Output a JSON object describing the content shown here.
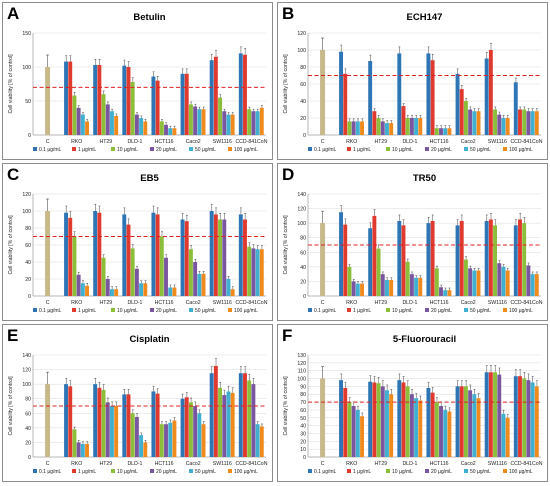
{
  "figure": {
    "ylabel": "Cell viability [% of control]",
    "categories": [
      "C",
      "RKO",
      "HT29",
      "DLD-1",
      "HCT116",
      "Caco2",
      "SW1116",
      "CCD-841CoN"
    ],
    "legend": [
      "0.1 µg/mL",
      "1 µg/mL",
      "10 µg/mL",
      "20 µg/mL",
      "50 µg/mL",
      "100 µg/mL"
    ],
    "colors": [
      "#2e75b6",
      "#e03a2f",
      "#8bbf3a",
      "#7a55a0",
      "#3fb0d0",
      "#f18a1d"
    ],
    "control_color": "#c8b98a",
    "threshold_color": "#e02020",
    "threshold": 70
  },
  "chart_data": [
    {
      "panel": "A",
      "title": "Betulin",
      "type": "bar",
      "ylim": [
        0,
        150
      ],
      "yticks": [
        0,
        50,
        100,
        150
      ],
      "control": 100,
      "series": [
        {
          "name": "0.1 µg/mL",
          "values": [
            108,
            103,
            102,
            86,
            90,
            110,
            120
          ]
        },
        {
          "name": "1 µg/mL",
          "values": [
            108,
            103,
            100,
            80,
            90,
            115,
            118
          ]
        },
        {
          "name": "10 µg/mL",
          "values": [
            58,
            60,
            78,
            20,
            45,
            55,
            38
          ]
        },
        {
          "name": "20 µg/mL",
          "values": [
            40,
            45,
            30,
            15,
            42,
            35,
            35
          ]
        },
        {
          "name": "50 µg/mL",
          "values": [
            30,
            35,
            25,
            10,
            38,
            30,
            35
          ]
        },
        {
          "name": "100 µg/mL",
          "values": [
            20,
            28,
            20,
            10,
            38,
            30,
            40
          ]
        }
      ]
    },
    {
      "panel": "B",
      "title": "ECH147",
      "type": "bar",
      "ylim": [
        0,
        120
      ],
      "yticks": [
        0,
        20,
        40,
        60,
        80,
        100,
        120
      ],
      "control": 100,
      "series": [
        {
          "name": "0.1 µg/mL",
          "values": [
            98,
            87,
            96,
            96,
            72,
            90,
            62
          ]
        },
        {
          "name": "1 µg/mL",
          "values": [
            72,
            28,
            34,
            88,
            54,
            100,
            30
          ]
        },
        {
          "name": "10 µg/mL",
          "values": [
            16,
            20,
            20,
            8,
            40,
            30,
            30
          ]
        },
        {
          "name": "20 µg/mL",
          "values": [
            16,
            16,
            20,
            8,
            30,
            24,
            28
          ]
        },
        {
          "name": "50 µg/mL",
          "values": [
            16,
            14,
            20,
            8,
            28,
            20,
            28
          ]
        },
        {
          "name": "100 µg/mL",
          "values": [
            16,
            14,
            20,
            8,
            28,
            20,
            28
          ]
        }
      ]
    },
    {
      "panel": "C",
      "title": "EB5",
      "type": "bar",
      "ylim": [
        0,
        120
      ],
      "yticks": [
        0,
        20,
        40,
        60,
        80,
        100,
        120
      ],
      "control": 100,
      "series": [
        {
          "name": "0.1 µg/mL",
          "values": [
            98,
            100,
            96,
            98,
            90,
            100,
            96
          ]
        },
        {
          "name": "1 µg/mL",
          "values": [
            92,
            98,
            84,
            96,
            88,
            96,
            90
          ]
        },
        {
          "name": "10 µg/mL",
          "values": [
            70,
            45,
            56,
            70,
            55,
            90,
            58
          ]
        },
        {
          "name": "20 µg/mL",
          "values": [
            25,
            20,
            32,
            45,
            40,
            90,
            56
          ]
        },
        {
          "name": "50 µg/mL",
          "values": [
            15,
            8,
            15,
            10,
            26,
            20,
            55
          ]
        },
        {
          "name": "100 µg/mL",
          "values": [
            12,
            8,
            15,
            10,
            26,
            8,
            55
          ]
        }
      ]
    },
    {
      "panel": "D",
      "title": "TR50",
      "type": "bar",
      "ylim": [
        0,
        140
      ],
      "yticks": [
        0,
        20,
        40,
        60,
        80,
        100,
        120,
        140
      ],
      "control": 100,
      "series": [
        {
          "name": "0.1 µg/mL",
          "values": [
            115,
            93,
            103,
            100,
            97,
            103,
            97
          ]
        },
        {
          "name": "1 µg/mL",
          "values": [
            98,
            110,
            97,
            103,
            103,
            105,
            105
          ]
        },
        {
          "name": "10 µg/mL",
          "values": [
            40,
            65,
            47,
            38,
            50,
            97,
            100
          ]
        },
        {
          "name": "20 µg/mL",
          "values": [
            20,
            30,
            30,
            12,
            38,
            45,
            42
          ]
        },
        {
          "name": "50 µg/mL",
          "values": [
            17,
            22,
            25,
            8,
            35,
            40,
            30
          ]
        },
        {
          "name": "100 µg/mL",
          "values": [
            17,
            22,
            25,
            8,
            35,
            35,
            30
          ]
        }
      ]
    },
    {
      "panel": "E",
      "title": "Cisplatin",
      "type": "bar",
      "ylim": [
        0,
        140
      ],
      "yticks": [
        0,
        20,
        40,
        60,
        80,
        100,
        120,
        140
      ],
      "control": 100,
      "series": [
        {
          "name": "0.1 µg/mL",
          "values": [
            100,
            100,
            86,
            90,
            80,
            115,
            115
          ]
        },
        {
          "name": "1 µg/mL",
          "values": [
            97,
            95,
            86,
            87,
            82,
            125,
            115
          ]
        },
        {
          "name": "10 µg/mL",
          "values": [
            38,
            92,
            60,
            45,
            75,
            95,
            105
          ]
        },
        {
          "name": "20 µg/mL",
          "values": [
            20,
            75,
            55,
            45,
            70,
            85,
            100
          ]
        },
        {
          "name": "50 µg/mL",
          "values": [
            18,
            70,
            30,
            47,
            60,
            90,
            45
          ]
        },
        {
          "name": "100 µg/mL",
          "values": [
            18,
            70,
            20,
            50,
            45,
            88,
            42
          ]
        }
      ]
    },
    {
      "panel": "F",
      "title": "5-Fluorouracil",
      "type": "bar",
      "ylim": [
        0,
        130
      ],
      "yticks": [
        0,
        10,
        20,
        30,
        40,
        50,
        60,
        70,
        80,
        90,
        100,
        110,
        120,
        130
      ],
      "control": 100,
      "series": [
        {
          "name": "0.1 µg/mL",
          "values": [
            98,
            96,
            98,
            88,
            90,
            108,
            103
          ]
        },
        {
          "name": "1 µg/mL",
          "values": [
            88,
            95,
            95,
            82,
            90,
            108,
            103
          ]
        },
        {
          "name": "10 µg/mL",
          "values": [
            70,
            94,
            90,
            70,
            90,
            108,
            100
          ]
        },
        {
          "name": "20 µg/mL",
          "values": [
            65,
            90,
            80,
            65,
            85,
            105,
            98
          ]
        },
        {
          "name": "50 µg/mL",
          "values": [
            60,
            85,
            75,
            60,
            80,
            55,
            95
          ]
        },
        {
          "name": "100 µg/mL",
          "values": [
            52,
            80,
            72,
            58,
            75,
            50,
            90
          ]
        }
      ]
    }
  ]
}
